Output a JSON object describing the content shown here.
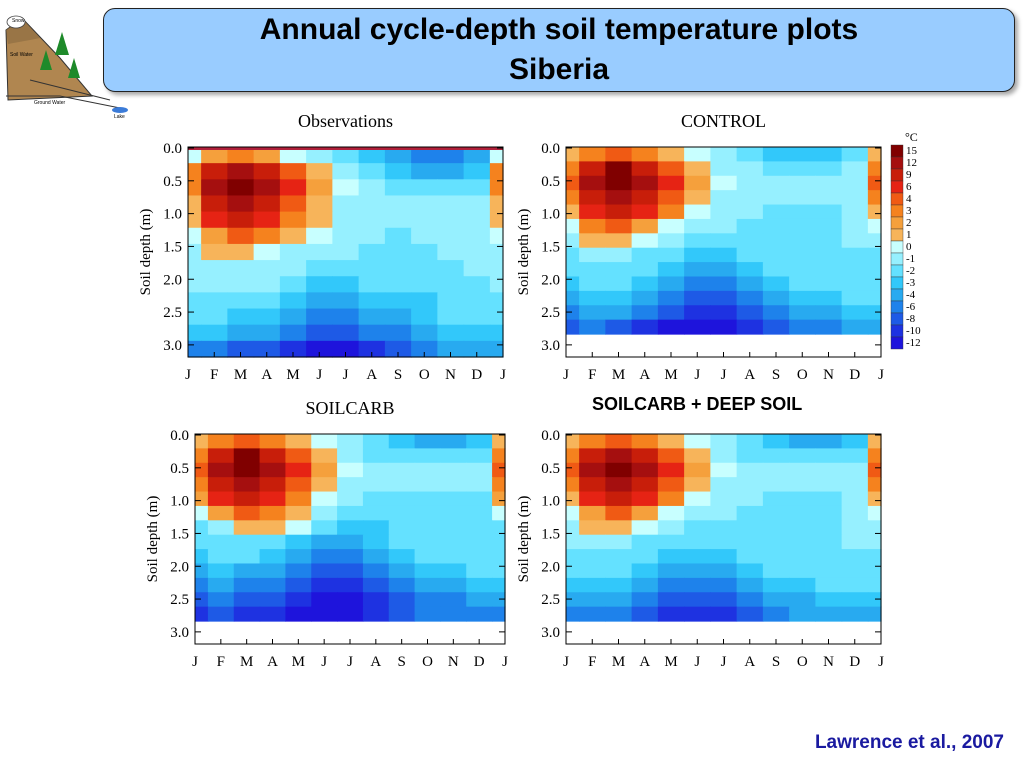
{
  "header": {
    "title_line1": "Annual cycle-depth soil temperature plots",
    "title_line2": "Siberia"
  },
  "logo": {
    "labels": [
      "Snow",
      "Soil Water",
      "Ground Water",
      "Lake"
    ]
  },
  "colors": {
    "title_background": "#99ccff",
    "citation_color": "#1a1aa0"
  },
  "citation": "Lawrence et al., 2007",
  "chart_data": [
    {
      "type": "heatmap",
      "title": "Observations",
      "xlabel": "",
      "ylabel": "Soil depth (m)",
      "x_ticks": [
        "J",
        "F",
        "M",
        "A",
        "M",
        "J",
        "J",
        "A",
        "S",
        "O",
        "N",
        "D",
        "J"
      ],
      "y_ticks": [
        "0.0",
        "0.5",
        "1.0",
        "1.5",
        "2.0",
        "2.5",
        "3.0"
      ],
      "ylim": [
        0,
        3.2
      ],
      "max_depth": 3.2,
      "lvl": [
        [
          -6,
          -6,
          -8,
          -8,
          -10,
          -12,
          -12,
          -10,
          -8,
          -6,
          -4,
          -4,
          -4
        ],
        [
          -3,
          -3,
          -4,
          -4,
          -6,
          -8,
          -8,
          -6,
          -6,
          -4,
          -3,
          -3,
          -3
        ],
        [
          -2,
          -2,
          -3,
          -3,
          -4,
          -6,
          -6,
          -4,
          -4,
          -3,
          -2,
          -2,
          -2
        ],
        [
          -2,
          -2,
          -2,
          -2,
          -3,
          -4,
          -4,
          -3,
          -3,
          -3,
          -2,
          -2,
          -2
        ],
        [
          -1,
          -1,
          -1,
          -1,
          -2,
          -3,
          -3,
          -2,
          -2,
          -2,
          -2,
          -2,
          -1
        ],
        [
          -1,
          -1,
          -1,
          -1,
          -1,
          -2,
          -2,
          -2,
          -2,
          -2,
          -2,
          -1,
          -1
        ],
        [
          -1,
          1,
          1,
          0,
          -1,
          -1,
          -1,
          -2,
          -2,
          -2,
          -1,
          -1,
          -1
        ],
        [
          0,
          2,
          4,
          3,
          1,
          0,
          -1,
          -1,
          -2,
          -1,
          -1,
          -1,
          0
        ],
        [
          1,
          6,
          9,
          6,
          3,
          1,
          -1,
          -1,
          -1,
          -1,
          -1,
          -1,
          1
        ],
        [
          1,
          9,
          12,
          9,
          4,
          1,
          -1,
          -1,
          -1,
          -1,
          -1,
          -1,
          1
        ],
        [
          3,
          12,
          15,
          12,
          6,
          2,
          0,
          -1,
          -2,
          -2,
          -2,
          -2,
          3
        ],
        [
          3,
          9,
          12,
          9,
          4,
          1,
          -1,
          -2,
          -3,
          -4,
          -4,
          -3,
          3
        ],
        [
          0,
          2,
          3,
          2,
          0,
          -1,
          -2,
          -3,
          -4,
          -6,
          -6,
          -4,
          0
        ]
      ]
    },
    {
      "type": "heatmap",
      "title": "CONTROL",
      "xlabel": "",
      "ylabel": "Soil depth (m)",
      "x_ticks": [
        "J",
        "F",
        "M",
        "A",
        "M",
        "J",
        "J",
        "A",
        "S",
        "O",
        "N",
        "D",
        "J"
      ],
      "y_ticks": [
        "0.0",
        "0.5",
        "1.0",
        "1.5",
        "2.0",
        "2.5",
        "3.0"
      ],
      "ylim": [
        0,
        3.2
      ],
      "max_depth": 2.85,
      "lvl": [
        [
          -8,
          -6,
          -8,
          -10,
          -12,
          -12,
          -12,
          -10,
          -8,
          -6,
          -6,
          -4,
          -4
        ],
        [
          -6,
          -4,
          -4,
          -6,
          -8,
          -10,
          -10,
          -8,
          -6,
          -4,
          -4,
          -3,
          -3
        ],
        [
          -4,
          -3,
          -3,
          -4,
          -6,
          -8,
          -8,
          -6,
          -4,
          -3,
          -3,
          -2,
          -2
        ],
        [
          -3,
          -2,
          -2,
          -3,
          -4,
          -6,
          -6,
          -4,
          -3,
          -2,
          -2,
          -2,
          -2
        ],
        [
          -2,
          -2,
          -2,
          -2,
          -3,
          -4,
          -4,
          -3,
          -2,
          -2,
          -2,
          -2,
          -2
        ],
        [
          -2,
          -1,
          -1,
          -2,
          -2,
          -3,
          -3,
          -2,
          -2,
          -2,
          -2,
          -2,
          -2
        ],
        [
          -1,
          1,
          1,
          0,
          -1,
          -2,
          -2,
          -2,
          -2,
          -2,
          -2,
          -1,
          -1
        ],
        [
          0,
          3,
          4,
          2,
          0,
          -1,
          -1,
          -2,
          -2,
          -2,
          -2,
          -1,
          0
        ],
        [
          1,
          6,
          9,
          6,
          3,
          0,
          -1,
          -1,
          -2,
          -2,
          -2,
          -1,
          1
        ],
        [
          3,
          9,
          12,
          9,
          4,
          1,
          -1,
          -1,
          -1,
          -1,
          -1,
          -1,
          3
        ],
        [
          4,
          12,
          15,
          12,
          6,
          2,
          0,
          -1,
          -1,
          -1,
          -1,
          -1,
          4
        ],
        [
          3,
          9,
          15,
          9,
          4,
          1,
          -1,
          -1,
          -2,
          -2,
          -2,
          -1,
          3
        ],
        [
          1,
          3,
          4,
          3,
          1,
          0,
          -1,
          -2,
          -3,
          -3,
          -3,
          -2,
          1
        ]
      ]
    },
    {
      "type": "heatmap",
      "title": "SOILCARB",
      "xlabel": "",
      "ylabel": "Soil depth (m)",
      "x_ticks": [
        "J",
        "F",
        "M",
        "A",
        "M",
        "J",
        "J",
        "A",
        "S",
        "O",
        "N",
        "D",
        "J"
      ],
      "y_ticks": [
        "0.0",
        "0.5",
        "1.0",
        "1.5",
        "2.0",
        "2.5",
        "3.0"
      ],
      "ylim": [
        0,
        3.2
      ],
      "max_depth": 2.85,
      "lvl": [
        [
          -10,
          -8,
          -10,
          -10,
          -12,
          -12,
          -12,
          -10,
          -8,
          -6,
          -6,
          -6,
          -6
        ],
        [
          -8,
          -6,
          -8,
          -8,
          -10,
          -12,
          -12,
          -10,
          -8,
          -6,
          -6,
          -4,
          -4
        ],
        [
          -6,
          -4,
          -6,
          -6,
          -8,
          -10,
          -10,
          -8,
          -6,
          -4,
          -4,
          -3,
          -3
        ],
        [
          -4,
          -3,
          -4,
          -4,
          -6,
          -8,
          -8,
          -6,
          -4,
          -3,
          -3,
          -2,
          -2
        ],
        [
          -3,
          -2,
          -2,
          -3,
          -4,
          -6,
          -6,
          -4,
          -3,
          -2,
          -2,
          -2,
          -2
        ],
        [
          -2,
          -2,
          -2,
          -2,
          -3,
          -4,
          -4,
          -3,
          -2,
          -2,
          -2,
          -2,
          -2
        ],
        [
          -2,
          -1,
          1,
          1,
          0,
          -2,
          -3,
          -3,
          -2,
          -2,
          -2,
          -2,
          -2
        ],
        [
          0,
          2,
          4,
          3,
          1,
          -1,
          -2,
          -2,
          -2,
          -2,
          -2,
          -2,
          0
        ],
        [
          2,
          6,
          9,
          6,
          3,
          0,
          -1,
          -2,
          -2,
          -2,
          -2,
          -2,
          2
        ],
        [
          3,
          9,
          12,
          9,
          4,
          1,
          -1,
          -1,
          -1,
          -1,
          -1,
          -1,
          3
        ],
        [
          4,
          12,
          15,
          12,
          6,
          2,
          0,
          -1,
          -1,
          -1,
          -1,
          -1,
          4
        ],
        [
          3,
          9,
          15,
          9,
          4,
          1,
          -1,
          -2,
          -2,
          -2,
          -2,
          -2,
          3
        ],
        [
          1,
          3,
          4,
          3,
          1,
          0,
          -1,
          -2,
          -3,
          -4,
          -4,
          -3,
          1
        ]
      ]
    },
    {
      "type": "heatmap",
      "title": "SOILCARB + DEEP SOIL",
      "xlabel": "",
      "ylabel": "Soil depth (m)",
      "x_ticks": [
        "J",
        "F",
        "M",
        "A",
        "M",
        "J",
        "J",
        "A",
        "S",
        "O",
        "N",
        "D",
        "J"
      ],
      "y_ticks": [
        "0.0",
        "0.5",
        "1.0",
        "1.5",
        "2.0",
        "2.5",
        "3.0"
      ],
      "ylim": [
        0,
        3.2
      ],
      "max_depth": 2.85,
      "lvl": [
        [
          -6,
          -6,
          -6,
          -8,
          -10,
          -10,
          -10,
          -8,
          -6,
          -4,
          -4,
          -4,
          -4
        ],
        [
          -4,
          -4,
          -4,
          -6,
          -8,
          -8,
          -8,
          -6,
          -4,
          -4,
          -3,
          -3,
          -3
        ],
        [
          -3,
          -3,
          -3,
          -4,
          -6,
          -6,
          -6,
          -4,
          -3,
          -3,
          -2,
          -2,
          -2
        ],
        [
          -2,
          -2,
          -2,
          -3,
          -4,
          -4,
          -4,
          -3,
          -2,
          -2,
          -2,
          -2,
          -2
        ],
        [
          -2,
          -2,
          -2,
          -2,
          -3,
          -3,
          -3,
          -2,
          -2,
          -2,
          -2,
          -2,
          -2
        ],
        [
          -1,
          -1,
          -1,
          -2,
          -2,
          -2,
          -2,
          -2,
          -2,
          -2,
          -2,
          -1,
          -1
        ],
        [
          -1,
          1,
          1,
          0,
          -1,
          -2,
          -2,
          -2,
          -2,
          -2,
          -2,
          -1,
          -1
        ],
        [
          0,
          2,
          4,
          2,
          0,
          -1,
          -1,
          -2,
          -2,
          -2,
          -2,
          -1,
          0
        ],
        [
          1,
          6,
          9,
          6,
          3,
          0,
          -1,
          -1,
          -2,
          -2,
          -2,
          -1,
          1
        ],
        [
          3,
          9,
          12,
          9,
          4,
          1,
          -1,
          -1,
          -1,
          -1,
          -1,
          -1,
          3
        ],
        [
          4,
          12,
          15,
          12,
          6,
          2,
          0,
          -1,
          -1,
          -1,
          -1,
          -1,
          4
        ],
        [
          3,
          9,
          12,
          9,
          4,
          1,
          -1,
          -2,
          -2,
          -2,
          -2,
          -2,
          3
        ],
        [
          1,
          3,
          4,
          3,
          1,
          0,
          -1,
          -2,
          -3,
          -4,
          -4,
          -3,
          1
        ]
      ]
    }
  ],
  "colorbar": {
    "unit": "°C",
    "labels": [
      "15",
      "12",
      "9",
      "6",
      "4",
      "3",
      "2",
      "1",
      "0",
      "-1",
      "-2",
      "-3",
      "-4",
      "-6",
      "-8",
      "-10",
      "-12"
    ],
    "colors": [
      "#800000",
      "#a50f0f",
      "#c81e0a",
      "#e62314",
      "#f05a14",
      "#f5821e",
      "#f5a03c",
      "#f7b45a",
      "#c8ffff",
      "#96f0ff",
      "#64e1ff",
      "#32c8fa",
      "#28aaf0",
      "#1e82eb",
      "#1e5ae6",
      "#1e32e1",
      "#1e14dc"
    ]
  }
}
